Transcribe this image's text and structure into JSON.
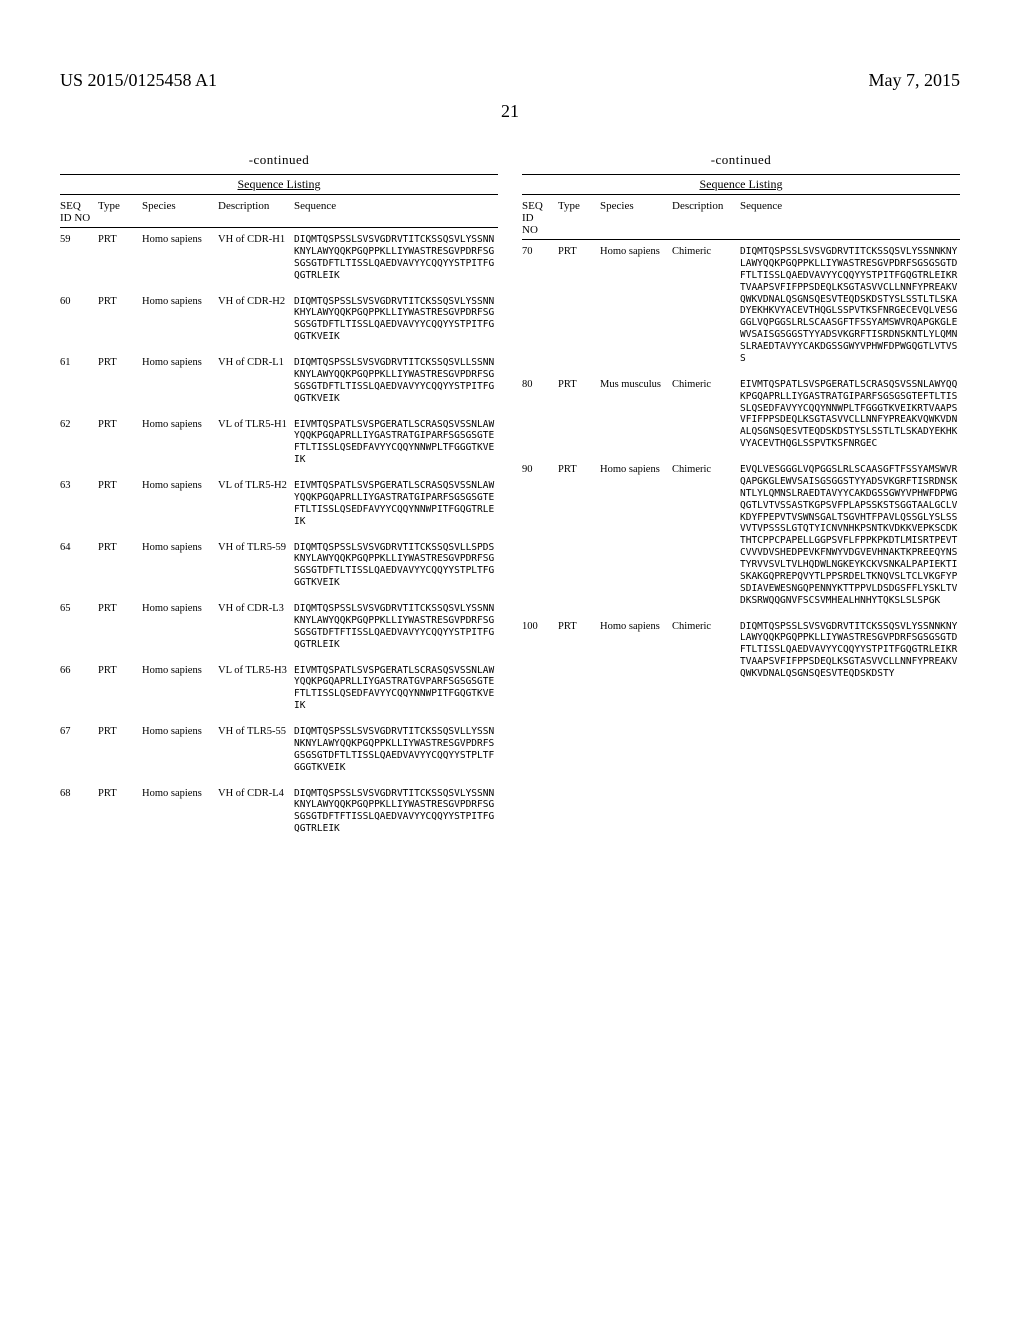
{
  "header": {
    "left": "US 2015/0125458 A1",
    "right": "May 7, 2015",
    "page_number": "21"
  },
  "left_table": {
    "continued_label": "-continued",
    "title": "Sequence Listing",
    "columns": {
      "c1": "SEQ\nID\nNO",
      "c2": "Type",
      "c3": "Species",
      "c4": "Description",
      "c5": "Sequence"
    },
    "rows": [
      {
        "c1": "59",
        "c2": "PRT",
        "c3": "Homo sapiens",
        "c4": "VH of CDR-H1",
        "c5": "DIQMTQSPSSLSVSVGDRVTITCKSSQSVLYSSNNKNYLAWYQQKPGQPPKLLIYWASTRESGVPDRFSGSGSGTDFTLTISSLQAEDVAVYYCQQYYSTPITFGQGTRLEIK"
      },
      {
        "c1": "60",
        "c2": "PRT",
        "c3": "Homo sapiens",
        "c4": "VH of CDR-H2",
        "c5": "DIQMTQSPSSLSVSVGDRVTITCKSSQSVLYSSNNKHYLAWYQQKPGQPPKLLIYWASTRESGVPDRFSGSGSGTDFTLTISSLQAEDVAVYYCQQYYSTPITFGQGTKVEIK"
      },
      {
        "c1": "61",
        "c2": "PRT",
        "c3": "Homo sapiens",
        "c4": "VH of CDR-L1",
        "c5": "DIQMTQSPSSLSVSVGDRVTITCKSSQSVLLSSNNKNYLAWYQQKPGQPPKLLIYWASTRESGVPDRFSGSGSGTDFTLTISSLQAEDVAVYYCQQYYSTPITFGQGTKVEIK"
      },
      {
        "c1": "62",
        "c2": "PRT",
        "c3": "Homo sapiens",
        "c4": "VL of TLR5-H1",
        "c5": "EIVMTQSPATLSVSPGERATLSCRASQSVSSNLAWYQQKPGQAPRLLIYGASTRATGIPARFSGSGSGTEFTLTISSLQSEDFAVYYCQQYNNWPLTFGGGTKVEIK"
      },
      {
        "c1": "63",
        "c2": "PRT",
        "c3": "Homo sapiens",
        "c4": "VL of TLR5-H2",
        "c5": "EIVMTQSPATLSVSPGERATLSCRASQSVSSNLAWYQQKPGQAPRLLIYGASTRATGIPARFSGSGSGTEFTLTISSLQSEDFAVYYCQQYNNWPITFGQGTRLEIK"
      },
      {
        "c1": "64",
        "c2": "PRT",
        "c3": "Homo sapiens",
        "c4": "VH of TLR5-59",
        "c5": "DIQMTQSPSSLSVSVGDRVTITCKSSQSVLLSPDSKNYLAWYQQKPGQPPKLLIYWASTRESGVPDRFSGSGSGTDFTLTISSLQAEDVAVYYCQQYYSTPLTFGGGTKVEIK"
      },
      {
        "c1": "65",
        "c2": "PRT",
        "c3": "Homo sapiens",
        "c4": "VH of CDR-L3",
        "c5": "DIQMTQSPSSLSVSVGDRVTITCKSSQSVLYSSNNKNYLAWYQQKPGQPPKLLIYWASTRESGVPDRFSGSGSGTDFTFTISSLQAEDVAVYYCQQYYSTPITFGQGTRLEIK"
      },
      {
        "c1": "66",
        "c2": "PRT",
        "c3": "Homo sapiens",
        "c4": "VL of TLR5-H3",
        "c5": "EIVMTQSPATLSVSPGERATLSCRASQSVSSNLAWYQQKPGQAPRLLIYGASTRATGVPARFSGSGSGTEFTLTISSLQSEDFAVYYCQQYNNWPITFGQGTKVEIK"
      },
      {
        "c1": "67",
        "c2": "PRT",
        "c3": "Homo sapiens",
        "c4": "VH of TLR5-55",
        "c5": "DIQMTQSPSSLSVSVGDRVTITCKSSQSVLLYSSNNKNYLAWYQQKPGQPPKLLIYWASTRESGVPDRFSGSGSGTDFTLTISSLQAEDVAVYYCQQYYSTPLTFGGGTKVEIK"
      },
      {
        "c1": "68",
        "c2": "PRT",
        "c3": "Homo sapiens",
        "c4": "VH of CDR-L4",
        "c5": "DIQMTQSPSSLSVSVGDRVTITCKSSQSVLYSSNNKNYLAWYQQKPGQPPKLLIYWASTRESGVPDRFSGSGSGTDFTFTISSLQAEDVAVYYCQQYYSTPITFGQGTRLEIK"
      }
    ]
  },
  "right_table": {
    "continued_label": "-continued",
    "title": "Sequence Listing",
    "columns": {
      "c1": "SEQ\nID\nNO",
      "c2": "Type",
      "c3": "Species",
      "c4": "Description",
      "c5": "Sequence"
    },
    "rows": [
      {
        "c1": "70",
        "c2": "PRT",
        "c3": "Homo sapiens",
        "c4": "Chimeric",
        "c5": "DIQMTQSPSSLSVSVGDRVTITCKSSQSVLYSSNNKNYLAWYQQKPGQPPKLLIYWASTRESGVPDRFSGSGSGTDFTLTISSLQAEDVAVYYCQQYYSTPITFGQGTRLEIKRTVAAPSVFIFPPSDEQLKSGTASVVCLLNNFYPREAKVQWKVDNALQSGNSQESVTEQDSKDSTYSLSSTLTLSKADYEKHKVYACEVTHQGLSSPVTKSFNRGECEVQLVESGGGLVQPGGSLRLSCAASGFTFSSYAMSWVRQAPGKGLEWVSAISGSGGSTYYADSVKGRFTISRDNSKNTLYLQMNSLRAEDTAVYYCAKDGSSGWYVPHWFDPWGQGTLVTVSS"
      },
      {
        "c1": "80",
        "c2": "PRT",
        "c3": "Mus musculus",
        "c4": "Chimeric",
        "c5": "EIVMTQSPATLSVSPGERATLSCRASQSVSSNLAWYQQKPGQAPRLLIYGASTRATGIPARFSGSGSGTEFTLTISSLQSEDFAVYYCQQYNNWPLTFGGGTKVEIKRTVAAPSVFIFPPSDEQLKSGTASVVCLLNNFYPREAKVQWKVDNALQSGNSQESVTEQDSKDSTYSLSSTLTLSKADYEKHKVYACEVTHQGLSSPVTKSFNRGEC"
      },
      {
        "c1": "90",
        "c2": "PRT",
        "c3": "Homo sapiens",
        "c4": "Chimeric",
        "c5": "EVQLVESGGGLVQPGGSLRLSCAASGFTFSSYAMSWVRQAPGKGLEWVSAISGSGGSTYYADSVKGRFTISRDNSKNTLYLQMNSLRAEDTAVYYCAKDGSSGWYVPHWFDPWGQGTLVTVSSASTKGPSVFPLAPSSKSTSGGTAALGCLVKDYFPEPVTVSWNSGALTSGVHTFPAVLQSSGLYSLSSVVTVPSSSLGTQTYICNVNHKPSNTKVDKKVEPKSCDKTHTCPPCPAPELLGGPSVFLFPPKPKDTLMISRTPEVTCVVVDVSHEDPEVKFNWYVDGVEVHNAKTKPREEQYNSTYRVVSVLTVLHQDWLNGKEYKCKVSNKALPAPIEKTISKAKGQPREPQVYTLPPSRDELTKNQVSLTCLVKGFYPSDIAVEWESNGQPENNYKTTPPVLDSDGSFFLYSKLTVDKSRWQQGNVFSCSVMHEALHNHYTQKSLSLSPGK"
      },
      {
        "c1": "100",
        "c2": "PRT",
        "c3": "Homo sapiens",
        "c4": "Chimeric",
        "c5": "DIQMTQSPSSLSVSVGDRVTITCKSSQSVLYSSNNKNYLAWYQQKPGQPPKLLIYWASTRESGVPDRFSGSGSGTDFTLTISSLQAEDVAVYYCQQYYSTPITFGQGTRLEIKRTVAAPSVFIFPPSDEQLKSGTASVVCLLNNFYPREAKVQWKVDNALQSGNSQESVTEQDSKDSTY"
      }
    ]
  }
}
